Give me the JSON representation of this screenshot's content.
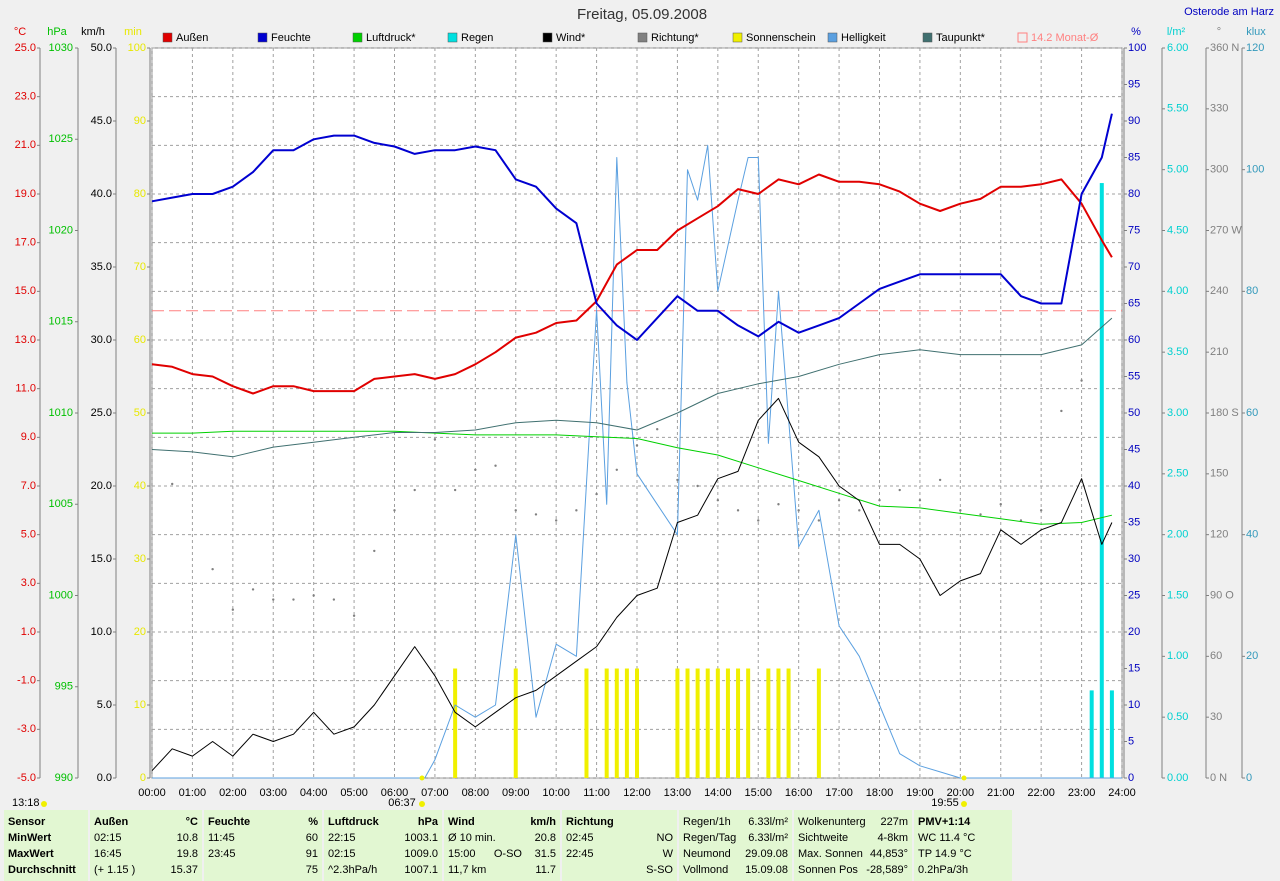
{
  "chart_data": {
    "type": "line",
    "title": "Freitag, 05.09.2008",
    "location": "Osterode am Harz",
    "xlim": [
      0,
      24
    ],
    "xticks": [
      {
        "value": 0,
        "label": "00:00"
      },
      {
        "value": 1,
        "label": "01:00"
      },
      {
        "value": 2,
        "label": "02:00"
      },
      {
        "value": 3,
        "label": "03:00"
      },
      {
        "value": 4,
        "label": "04:00"
      },
      {
        "value": 5,
        "label": "05:00"
      },
      {
        "value": 6,
        "label": "06:00"
      },
      {
        "value": 7,
        "label": "07:00"
      },
      {
        "value": 8,
        "label": "08:00"
      },
      {
        "value": 9,
        "label": "09:00"
      },
      {
        "value": 10,
        "label": "10:00"
      },
      {
        "value": 11,
        "label": "11:00"
      },
      {
        "value": 12,
        "label": "12:00"
      },
      {
        "value": 13,
        "label": "13:00"
      },
      {
        "value": 14,
        "label": "14:00"
      },
      {
        "value": 15,
        "label": "15:00"
      },
      {
        "value": 16,
        "label": "16:00"
      },
      {
        "value": 17,
        "label": "17:00"
      },
      {
        "value": 18,
        "label": "18:00"
      },
      {
        "value": 19,
        "label": "19:00"
      },
      {
        "value": 20,
        "label": "20:00"
      },
      {
        "value": 21,
        "label": "21:00"
      },
      {
        "value": 22,
        "label": "22:00"
      },
      {
        "value": 23,
        "label": "23:00"
      },
      {
        "value": 24,
        "label": "24:00"
      }
    ],
    "grid": true,
    "x": [
      0,
      0.5,
      1,
      1.5,
      2,
      2.5,
      3,
      3.5,
      4,
      4.5,
      5,
      5.5,
      6,
      6.5,
      7,
      7.5,
      8,
      8.5,
      9,
      9.5,
      10,
      10.5,
      11,
      11.5,
      12,
      12.5,
      13,
      13.5,
      14,
      14.5,
      15,
      15.5,
      16,
      16.5,
      17,
      17.5,
      18,
      18.5,
      19,
      19.5,
      20,
      20.5,
      21,
      21.5,
      22,
      22.5,
      23,
      23.5,
      23.75
    ],
    "axes": [
      {
        "label": "°C",
        "side": "left",
        "color": "#e00000",
        "lim": [
          -5,
          25
        ],
        "ticks": [
          {
            "value": 25,
            "label": "25.0"
          },
          {
            "value": 23,
            "label": "23.0"
          },
          {
            "value": 21,
            "label": "21.0"
          },
          {
            "value": 19,
            "label": "19.0"
          },
          {
            "value": 17,
            "label": "17.0"
          },
          {
            "value": 15,
            "label": "15.0"
          },
          {
            "value": 13,
            "label": "13.0"
          },
          {
            "value": 11,
            "label": "11.0"
          },
          {
            "value": 9,
            "label": "9.0"
          },
          {
            "value": 7,
            "label": "7.0"
          },
          {
            "value": 5,
            "label": "5.0"
          },
          {
            "value": 3,
            "label": "3.0"
          },
          {
            "value": 1,
            "label": "1.0"
          },
          {
            "value": -1,
            "label": "-1.0"
          },
          {
            "value": -3,
            "label": "-3.0"
          },
          {
            "value": -5,
            "label": "-5.0"
          }
        ]
      },
      {
        "label": "hPa",
        "side": "left",
        "color": "#00c000",
        "lim": [
          990,
          1030
        ],
        "ticks": [
          1030,
          1025,
          1020,
          1015,
          1010,
          1005,
          1000,
          995,
          990
        ]
      },
      {
        "label": "km/h",
        "side": "left",
        "color": "#000000",
        "lim": [
          0,
          50
        ],
        "ticks": [
          {
            "value": 50,
            "label": "50.0"
          },
          {
            "value": 45,
            "label": "45.0"
          },
          {
            "value": 40,
            "label": "40.0"
          },
          {
            "value": 35,
            "label": "35.0"
          },
          {
            "value": 30,
            "label": "30.0"
          },
          {
            "value": 25,
            "label": "25.0"
          },
          {
            "value": 20,
            "label": "20.0"
          },
          {
            "value": 15,
            "label": "15.0"
          },
          {
            "value": 10,
            "label": "10.0"
          },
          {
            "value": 5,
            "label": "5.0"
          },
          {
            "value": 0,
            "label": "0.0"
          }
        ]
      },
      {
        "label": "min",
        "side": "left",
        "color": "#e8e800",
        "lim": [
          0,
          100
        ],
        "ticks": [
          100,
          90,
          80,
          70,
          60,
          50,
          40,
          30,
          20,
          10,
          0
        ]
      },
      {
        "label": "%",
        "side": "right",
        "color": "#0000c0",
        "lim": [
          0,
          100
        ],
        "ticks": [
          100,
          95,
          90,
          85,
          80,
          75,
          70,
          65,
          60,
          55,
          50,
          45,
          40,
          35,
          30,
          25,
          20,
          15,
          10,
          5,
          0
        ]
      },
      {
        "label": "l/m²",
        "side": "right",
        "color": "#00d0d0",
        "lim": [
          0,
          6
        ],
        "ticks": [
          {
            "value": 6,
            "label": "6.00"
          },
          {
            "value": 5.5,
            "label": "5.50"
          },
          {
            "value": 5,
            "label": "5.00"
          },
          {
            "value": 4.5,
            "label": "4.50"
          },
          {
            "value": 4,
            "label": "4.00"
          },
          {
            "value": 3.5,
            "label": "3.50"
          },
          {
            "value": 3,
            "label": "3.00"
          },
          {
            "value": 2.5,
            "label": "2.50"
          },
          {
            "value": 2,
            "label": "2.00"
          },
          {
            "value": 1.5,
            "label": "1.50"
          },
          {
            "value": 1,
            "label": "1.00"
          },
          {
            "value": 0.5,
            "label": "0.50"
          },
          {
            "value": 0,
            "label": "0.00"
          }
        ]
      },
      {
        "label": "°",
        "side": "right",
        "color": "#808080",
        "lim": [
          0,
          360
        ],
        "ticks": [
          {
            "value": 360,
            "label": "360 N"
          },
          {
            "value": 330,
            "label": "330"
          },
          {
            "value": 300,
            "label": "300"
          },
          {
            "value": 270,
            "label": "270 W"
          },
          {
            "value": 240,
            "label": "240"
          },
          {
            "value": 210,
            "label": "210"
          },
          {
            "value": 180,
            "label": "180 S"
          },
          {
            "value": 150,
            "label": "150"
          },
          {
            "value": 120,
            "label": "120"
          },
          {
            "value": 90,
            "label": "90 O"
          },
          {
            "value": 60,
            "label": "60"
          },
          {
            "value": 30,
            "label": "30"
          },
          {
            "value": 0,
            "label": "0 N"
          }
        ]
      },
      {
        "label": "klux",
        "side": "right",
        "color": "#3399bb",
        "lim": [
          0,
          120
        ],
        "ticks": [
          120,
          100,
          80,
          60,
          40,
          20,
          0
        ]
      }
    ],
    "series": [
      {
        "name": "Außen",
        "color": "#e00000",
        "axis": "°C",
        "style": "line",
        "width": 2,
        "values": [
          12.0,
          11.9,
          11.6,
          11.5,
          11.1,
          10.8,
          11.1,
          11.1,
          10.9,
          10.9,
          10.9,
          11.4,
          11.5,
          11.6,
          11.4,
          11.6,
          12.0,
          12.5,
          13.1,
          13.3,
          13.7,
          13.8,
          14.6,
          16.1,
          16.7,
          16.7,
          17.5,
          18.0,
          18.5,
          19.2,
          19.0,
          19.6,
          19.4,
          19.8,
          19.5,
          19.5,
          19.4,
          19.1,
          18.6,
          18.3,
          18.6,
          18.8,
          19.3,
          19.3,
          19.4,
          19.6,
          18.6,
          17.1,
          16.4
        ]
      },
      {
        "name": "Feuchte",
        "color": "#0000d0",
        "axis": "%",
        "style": "line",
        "width": 2,
        "values": [
          79,
          79.5,
          80,
          80,
          81,
          83,
          86,
          86,
          87.5,
          88,
          88,
          87,
          86.5,
          85.5,
          86,
          86,
          86.5,
          86,
          82,
          81,
          78,
          76,
          65,
          62,
          60,
          63,
          66,
          64,
          64,
          62,
          60.5,
          62.5,
          61,
          62,
          63,
          65,
          67,
          68,
          69,
          69,
          69,
          69,
          69,
          66,
          65,
          65,
          80,
          85,
          91
        ]
      },
      {
        "name": "Luftdruck*",
        "color": "#00d000",
        "axis": "hPa",
        "style": "line",
        "width": 1,
        "x": [
          0,
          1,
          2,
          3,
          4,
          5,
          6,
          7,
          8,
          9,
          10,
          11,
          12,
          13,
          14,
          15,
          16,
          17,
          18,
          19,
          20,
          21,
          22,
          23,
          23.75
        ],
        "values": [
          1008.9,
          1008.9,
          1009.0,
          1009.0,
          1009.0,
          1009.0,
          1009.0,
          1008.9,
          1008.8,
          1008.8,
          1008.8,
          1008.7,
          1008.6,
          1008.1,
          1007.7,
          1007.0,
          1006.3,
          1005.6,
          1004.9,
          1004.8,
          1004.5,
          1004.2,
          1003.9,
          1004.0,
          1004.4
        ]
      },
      {
        "name": "Regen",
        "color": "#00e0e0",
        "axis": "l/m²",
        "style": "bar",
        "x": [
          23.25,
          23.5,
          23.75
        ],
        "values": [
          0.72,
          4.89,
          0.72
        ]
      },
      {
        "name": "Wind*",
        "color": "#000000",
        "axis": "km/h",
        "style": "line",
        "width": 1,
        "values": [
          0.5,
          2,
          1.5,
          2.5,
          1.5,
          3,
          2.5,
          3,
          4.5,
          3,
          3.5,
          5,
          7,
          9,
          7,
          4.5,
          3.5,
          4.5,
          5.5,
          6,
          7,
          8,
          9,
          11,
          12.5,
          13,
          17.5,
          18,
          20.5,
          21,
          24.5,
          26,
          23,
          22,
          20,
          19,
          16,
          16,
          15,
          12.5,
          13.5,
          14,
          17,
          16,
          17,
          17.5,
          20.5,
          16,
          17.5
        ]
      },
      {
        "name": "Richtung*",
        "color": "#808080",
        "axis": "°",
        "style": "dots",
        "x": [
          0.5,
          1.5,
          2,
          2.5,
          3,
          3.5,
          4,
          4.5,
          5,
          5.5,
          6,
          6.5,
          7,
          7.5,
          8,
          8.5,
          9,
          9.5,
          10,
          10.5,
          11,
          11.5,
          12,
          12.5,
          13,
          13.5,
          14,
          14.5,
          15,
          15.5,
          16,
          16.5,
          17,
          17.5,
          18,
          18.5,
          19,
          19.5,
          20,
          20.5,
          21,
          21.5,
          22,
          22.5,
          23,
          23.5
        ],
        "values": [
          145,
          103,
          83,
          93,
          88,
          88,
          90,
          88,
          80,
          112,
          132,
          142,
          167,
          142,
          152,
          154,
          132,
          130,
          127,
          132,
          140,
          152,
          164,
          172,
          147,
          144,
          137,
          132,
          127,
          135,
          132,
          127,
          137,
          132,
          137,
          142,
          137,
          147,
          132,
          130,
          135,
          127,
          132,
          181,
          196,
          157
        ]
      },
      {
        "name": "Sonnenschein",
        "color": "#f0f000",
        "axis": "min",
        "style": "bar",
        "x": [
          7.5,
          9,
          10.75,
          11.25,
          11.5,
          11.75,
          12,
          13,
          13.25,
          13.5,
          13.75,
          14,
          14.25,
          14.5,
          14.75,
          15.25,
          15.5,
          15.75,
          16.5
        ],
        "values": [
          15,
          15,
          15,
          15,
          15,
          15,
          15,
          15,
          15,
          15,
          15,
          15,
          15,
          15,
          15,
          15,
          15,
          15,
          15
        ]
      },
      {
        "name": "Helligkeit",
        "color": "#5ba0e0",
        "axis": "klux",
        "style": "line",
        "width": 1,
        "x": [
          0,
          6.75,
          7,
          7.5,
          8,
          8.5,
          9,
          9.5,
          10,
          10.5,
          11,
          11.25,
          11.5,
          11.75,
          12,
          12.5,
          13,
          13.25,
          13.5,
          13.75,
          14,
          14.5,
          14.75,
          15,
          15.25,
          15.5,
          16,
          16.5,
          17,
          17.5,
          18,
          18.5,
          19,
          19.5,
          20,
          24
        ],
        "values": [
          0,
          0,
          3,
          12,
          10,
          12,
          40,
          10,
          22,
          20,
          77,
          45,
          102,
          65,
          50,
          45,
          40,
          100,
          95,
          104,
          80,
          95,
          102,
          102,
          55,
          80,
          38,
          44,
          25,
          20,
          12,
          4,
          2,
          1,
          0,
          0
        ]
      },
      {
        "name": "Taupunkt*",
        "color": "#407070",
        "axis": "°C",
        "style": "line",
        "width": 1,
        "x": [
          0,
          1,
          2,
          3,
          4,
          5,
          6,
          7,
          8,
          9,
          10,
          11,
          12,
          13,
          14,
          15,
          16,
          17,
          18,
          19,
          20,
          21,
          22,
          23,
          23.75
        ],
        "values": [
          8.5,
          8.4,
          8.2,
          8.6,
          8.8,
          9.0,
          9.2,
          9.2,
          9.3,
          9.6,
          9.7,
          9.6,
          9.3,
          10.0,
          10.8,
          11.2,
          11.5,
          12.0,
          12.4,
          12.6,
          12.4,
          12.4,
          12.4,
          12.8,
          13.9
        ]
      }
    ],
    "reference": {
      "name": "14.2 Monat-Ø",
      "value": 14.2,
      "axis": "°C",
      "color": "#ff8080"
    },
    "annotations": {
      "time": "13:18",
      "sunrise": "06:37",
      "sunset": "19:55"
    }
  },
  "info": {
    "columns": [
      {
        "lines": [
          [
            "Sensor"
          ],
          [
            "MinWert"
          ],
          [
            "MaxWert"
          ],
          [
            "Durchschnitt"
          ]
        ]
      },
      {
        "lines": [
          [
            "Außen",
            "°C"
          ],
          [
            "02:15",
            "10.8"
          ],
          [
            "16:45",
            "19.8"
          ],
          [
            "(+ 1.15 )",
            "15.37"
          ]
        ]
      },
      {
        "lines": [
          [
            "Feuchte",
            "%"
          ],
          [
            "11:45",
            "60"
          ],
          [
            "23:45",
            "91"
          ],
          [
            "75"
          ]
        ]
      },
      {
        "lines": [
          [
            "Luftdruck",
            "hPa"
          ],
          [
            "22:15",
            "1003.1"
          ],
          [
            "02:15",
            "1009.0"
          ],
          [
            "^2.3hPa/h",
            "1007.1"
          ]
        ]
      },
      {
        "lines": [
          [
            "Wind",
            "km/h"
          ],
          [
            "Ø 10 min.",
            "20.8"
          ],
          [
            "15:00",
            "O-SO",
            "31.5"
          ],
          [
            "11,7 km",
            "11.7"
          ]
        ]
      },
      {
        "lines": [
          [
            "Richtung"
          ],
          [
            "02:45",
            "NO"
          ],
          [
            "22:45",
            "W"
          ],
          [
            "S-SO"
          ]
        ]
      },
      {
        "lines": [
          [
            "Regen/1h",
            "6.33l/m²"
          ],
          [
            "Regen/Tag",
            "6.33l/m²"
          ],
          [
            "Neumond",
            "29.09.08"
          ],
          [
            "Vollmond",
            "15.09.08"
          ]
        ]
      },
      {
        "lines": [
          [
            "Wolkenunterg",
            "227m"
          ],
          [
            "Sichtweite",
            "4-8km"
          ],
          [
            "Max. Sonnen",
            "44,853°"
          ],
          [
            "Sonnen Pos",
            "-28,589°"
          ]
        ]
      },
      {
        "lines": [
          [
            "PMV+1:14"
          ],
          [
            "WC 11.4 °C"
          ],
          [
            "TP 14.9 °C"
          ],
          [
            "0.2hPa/3h"
          ]
        ]
      }
    ]
  }
}
